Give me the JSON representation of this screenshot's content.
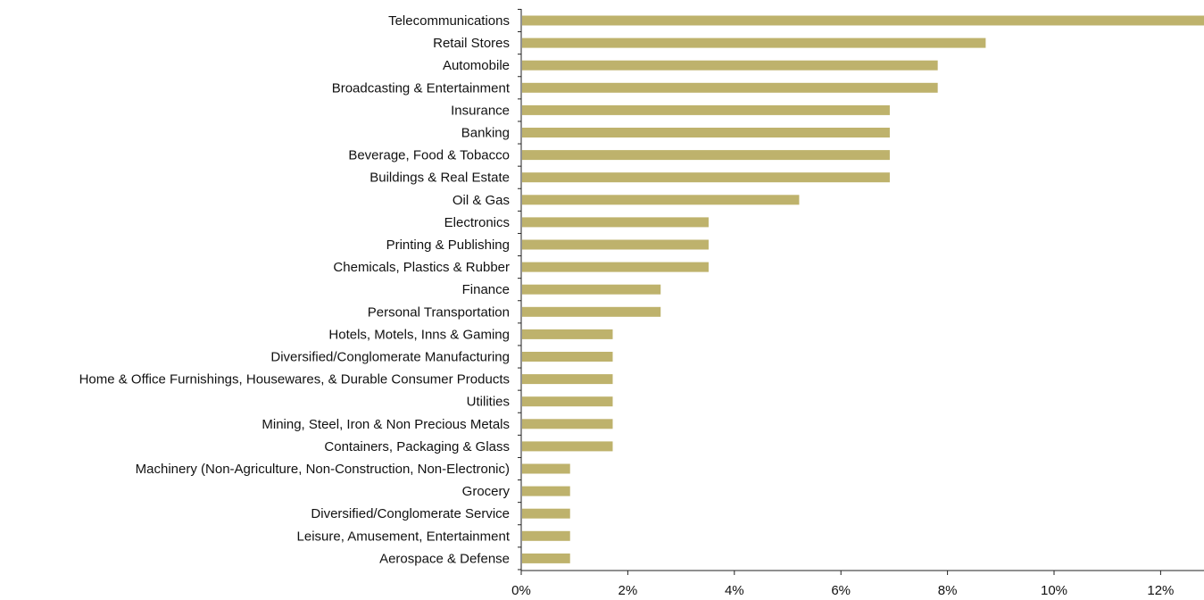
{
  "chart_data": {
    "type": "bar",
    "orientation": "horizontal",
    "title": "",
    "xlabel": "",
    "ylabel": "",
    "xlim": [
      0,
      13
    ],
    "x_ticks": [
      0,
      2,
      4,
      6,
      8,
      10,
      12
    ],
    "x_tick_labels": [
      "0%",
      "2%",
      "4%",
      "6%",
      "8%",
      "10%",
      "12%"
    ],
    "grid": false,
    "legend": "none",
    "bar_color": "#beb26c",
    "categories": [
      "Telecommunications",
      "Retail Stores",
      "Automobile",
      "Broadcasting & Entertainment",
      "Insurance",
      "Banking",
      "Beverage, Food & Tobacco",
      "Buildings & Real Estate",
      "Oil & Gas",
      "Electronics",
      "Printing & Publishing",
      "Chemicals, Plastics & Rubber",
      "Finance",
      "Personal Transportation",
      "Hotels, Motels, Inns & Gaming",
      "Diversified/Conglomerate Manufacturing",
      "Home & Office Furnishings, Housewares, & Durable Consumer Products",
      "Utilities",
      "Mining, Steel, Iron & Non Precious Metals",
      "Containers, Packaging & Glass",
      "Machinery (Non-Agriculture, Non-Construction, Non-Electronic)",
      "Grocery",
      "Diversified/Conglomerate Service",
      "Leisure, Amusement, Entertainment",
      "Aerospace & Defense"
    ],
    "values": [
      12.9,
      8.7,
      7.8,
      7.8,
      6.9,
      6.9,
      6.9,
      6.9,
      5.2,
      3.5,
      3.5,
      3.5,
      2.6,
      2.6,
      1.7,
      1.7,
      1.7,
      1.7,
      1.7,
      1.7,
      0.9,
      0.9,
      0.9,
      0.9,
      0.9
    ]
  }
}
